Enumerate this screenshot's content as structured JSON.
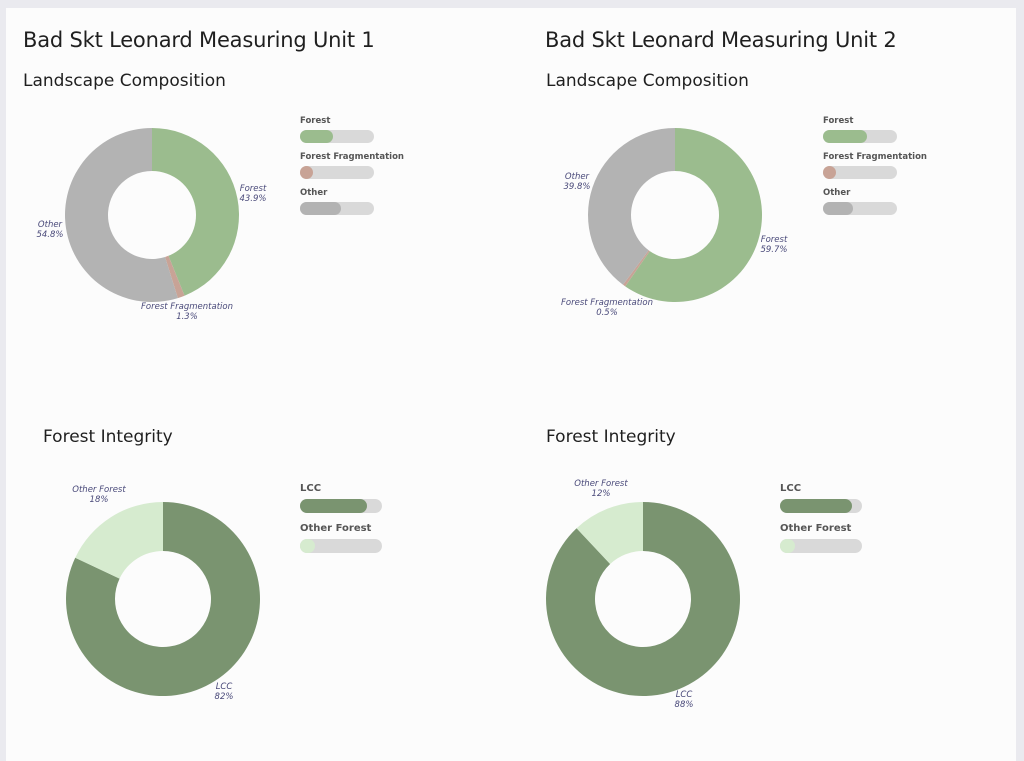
{
  "units": [
    {
      "title": "Bad Skt Leonard Measuring Unit 1",
      "landscape": {
        "title": "Landscape Composition",
        "chart_data": {
          "type": "pie",
          "title": "Landscape Composition",
          "categories": [
            "Forest",
            "Forest Fragmentation",
            "Other"
          ],
          "values": [
            43.9,
            1.3,
            54.8
          ],
          "value_labels": [
            "43.9%",
            "1.3%",
            "54.8%"
          ],
          "colors": [
            "#9bbc8e",
            "#c8a396",
            "#b3b3b3"
          ],
          "legend_position": "right",
          "legend_fill": [
            0.44,
            0.18,
            0.55
          ]
        }
      },
      "integrity": {
        "title": "Forest Integrity",
        "chart_data": {
          "type": "pie",
          "title": "Forest Integrity",
          "categories": [
            "LCC",
            "Other Forest"
          ],
          "values": [
            82,
            18
          ],
          "value_labels": [
            "82%",
            "18%"
          ],
          "colors": [
            "#7a9470",
            "#d6ebcf"
          ],
          "legend_position": "right",
          "legend_fill": [
            0.82,
            0.18
          ]
        }
      }
    },
    {
      "title": "Bad Skt Leonard Measuring Unit 2",
      "landscape": {
        "title": "Landscape Composition",
        "chart_data": {
          "type": "pie",
          "title": "Landscape Composition",
          "categories": [
            "Forest",
            "Forest Fragmentation",
            "Other"
          ],
          "values": [
            59.7,
            0.5,
            39.8
          ],
          "value_labels": [
            "59.7%",
            "0.5%",
            "39.8%"
          ],
          "colors": [
            "#9bbc8e",
            "#c8a396",
            "#b3b3b3"
          ],
          "legend_position": "right",
          "legend_fill": [
            0.6,
            0.18,
            0.4
          ]
        }
      },
      "integrity": {
        "title": "Forest Integrity",
        "chart_data": {
          "type": "pie",
          "title": "Forest Integrity",
          "categories": [
            "LCC",
            "Other Forest"
          ],
          "values": [
            88,
            12
          ],
          "value_labels": [
            "88%",
            "12%"
          ],
          "colors": [
            "#7a9470",
            "#d6ebcf"
          ],
          "legend_position": "right",
          "legend_fill": [
            0.88,
            0.18
          ]
        }
      }
    }
  ]
}
